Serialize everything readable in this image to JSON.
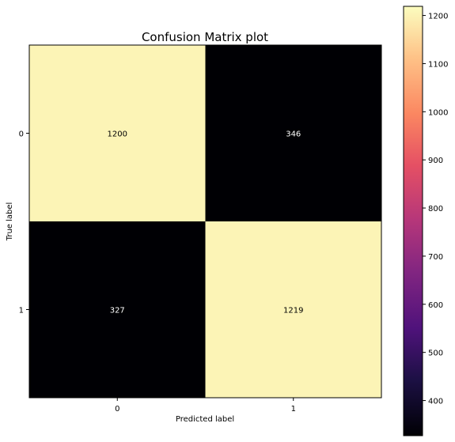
{
  "chart_data": {
    "type": "heatmap",
    "title": "Confusion Matrix plot",
    "xlabel": "Predicted label",
    "ylabel": "True label",
    "x_categories": [
      "0",
      "1"
    ],
    "y_categories": [
      "0",
      "1"
    ],
    "matrix": [
      [
        1200,
        346
      ],
      [
        327,
        1219
      ]
    ],
    "matrix_labels": [
      [
        "1200",
        "346"
      ],
      [
        "327",
        "1219"
      ]
    ],
    "colormap": "magma",
    "colorbar": {
      "range": [
        327,
        1219
      ],
      "ticks": [
        400,
        500,
        600,
        700,
        800,
        900,
        1000,
        1100,
        1200
      ],
      "tick_labels": [
        "400",
        "500",
        "600",
        "700",
        "800",
        "900",
        "1000",
        "1100",
        "1200"
      ]
    },
    "colors": {
      "high_cell": "#fcf4b6",
      "low_cell": "#000004",
      "high_text": "#000000",
      "low_text": "#ffffff"
    }
  }
}
